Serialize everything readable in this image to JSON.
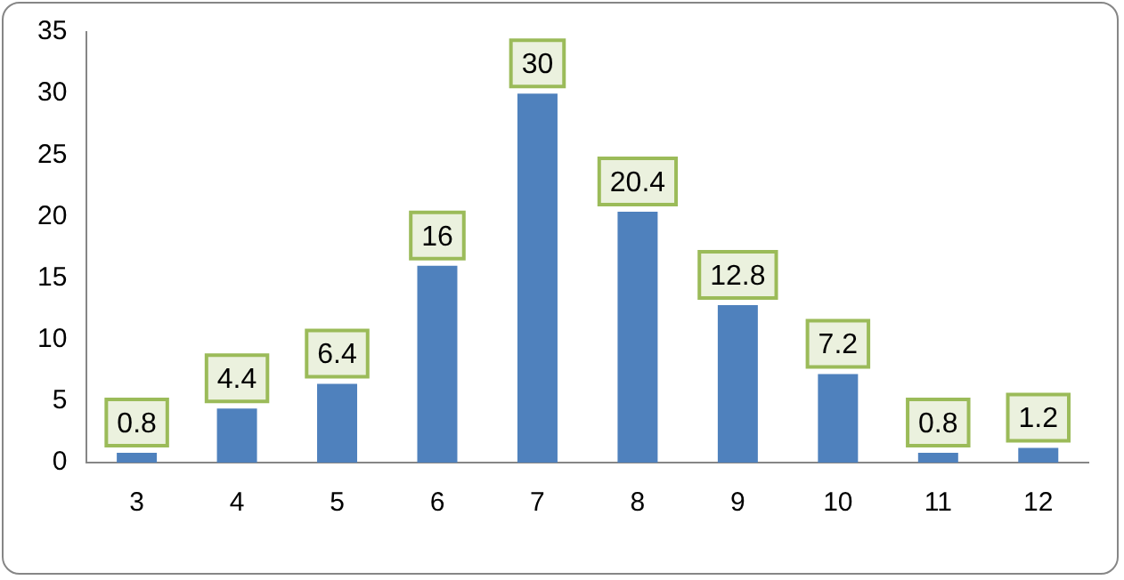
{
  "chart_data": {
    "type": "bar",
    "categories": [
      "3",
      "4",
      "5",
      "6",
      "7",
      "8",
      "9",
      "10",
      "11",
      "12"
    ],
    "values": [
      0.8,
      4.4,
      6.4,
      16,
      30,
      20.4,
      12.8,
      7.2,
      0.8,
      1.2
    ],
    "color": "#4f81bd",
    "ylim": [
      0,
      35
    ],
    "yticks": [
      0,
      5,
      10,
      15,
      20,
      25,
      30,
      35
    ],
    "grid": false,
    "legend": false,
    "data_labels": true
  }
}
